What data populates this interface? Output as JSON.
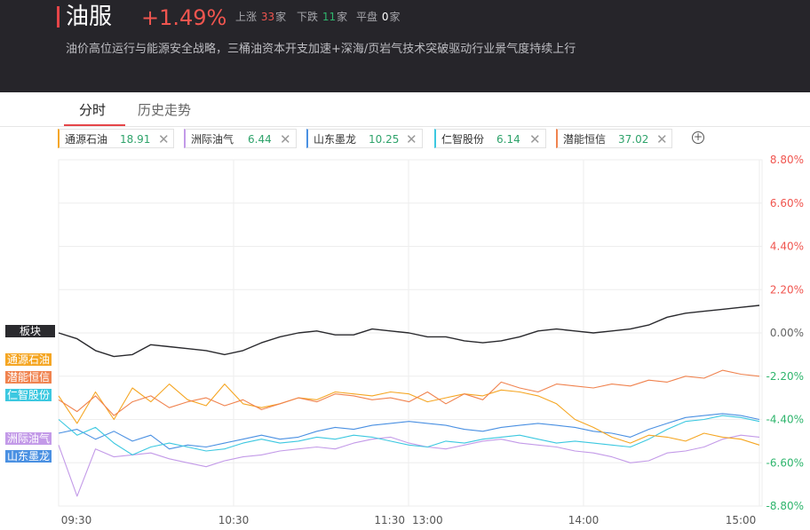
{
  "header": {
    "title": "油服",
    "change": "+1.49%",
    "up_label": "上涨",
    "up_count": "33",
    "up_unit": "家",
    "down_label": "下跌",
    "down_count": "11",
    "down_unit": "家",
    "flat_label": "平盘",
    "flat_count": "0",
    "flat_unit": "家",
    "description": "油价高位运行与能源安全战略，三桶油资本开支加速+深海/页岩气技术突破驱动行业景气度持续上行"
  },
  "tabs": [
    {
      "label": "分时"
    },
    {
      "label": "历史走势"
    }
  ],
  "chips": [
    {
      "name": "通源石油",
      "value": "18.91",
      "color": "#f5a623"
    },
    {
      "name": "洲际油气",
      "value": "6.44",
      "color": "#c39ae8"
    },
    {
      "name": "山东墨龙",
      "value": "10.25",
      "color": "#4a90e2"
    },
    {
      "name": "仁智股份",
      "value": "6.14",
      "color": "#3cc8e0"
    },
    {
      "name": "潜能恒信",
      "value": "37.02",
      "color": "#f0834f"
    }
  ],
  "colors": {
    "up": "#f0554f",
    "down": "#2fb56d",
    "board": "#2a2a2e",
    "grid": "#eeeeee"
  },
  "icons": {
    "close": "close-icon",
    "add": "plus-circle-icon"
  },
  "chart_data": {
    "type": "line",
    "x_ticks": [
      "09:30",
      "10:30",
      "11:30",
      "13:00",
      "14:00",
      "15:00"
    ],
    "ylim": [
      -8.8,
      8.8
    ],
    "y_ticks": [
      "8.80%",
      "6.60%",
      "4.40%",
      "2.20%",
      "0.00%",
      "-2.20%",
      "-4.40%",
      "-6.60%",
      "-8.80%"
    ],
    "grid": true,
    "series": [
      {
        "name": "板块",
        "color": "#2a2a2e",
        "values": [
          0.0,
          -0.3,
          -0.9,
          -1.2,
          -1.1,
          -0.6,
          -0.7,
          -0.8,
          -0.9,
          -1.1,
          -0.9,
          -0.5,
          -0.2,
          0.0,
          0.1,
          -0.1,
          -0.1,
          0.2,
          0.1,
          0.0,
          -0.2,
          -0.2,
          -0.4,
          -0.5,
          -0.4,
          -0.2,
          0.1,
          0.2,
          0.1,
          0.0,
          0.1,
          0.2,
          0.4,
          0.8,
          1.0,
          1.1,
          1.2,
          1.3,
          1.4
        ]
      },
      {
        "name": "通源石油",
        "color": "#f5a623",
        "values": [
          -3.2,
          -4.6,
          -3.0,
          -4.4,
          -2.8,
          -3.5,
          -2.6,
          -3.4,
          -3.7,
          -2.6,
          -3.6,
          -3.8,
          -3.6,
          -3.3,
          -3.4,
          -3.0,
          -3.1,
          -3.2,
          -3.0,
          -3.1,
          -3.5,
          -3.3,
          -3.1,
          -3.2,
          -2.9,
          -3.0,
          -3.2,
          -3.6,
          -4.4,
          -4.8,
          -5.3,
          -5.6,
          -5.2,
          -5.3,
          -5.5,
          -5.1,
          -5.3,
          -5.4,
          -5.7
        ]
      },
      {
        "name": "潜能恒信",
        "color": "#f0834f",
        "values": [
          -3.4,
          -4.0,
          -3.2,
          -4.2,
          -3.5,
          -3.2,
          -3.8,
          -3.5,
          -3.3,
          -3.7,
          -3.4,
          -3.9,
          -3.6,
          -3.3,
          -3.5,
          -3.1,
          -3.2,
          -3.4,
          -3.3,
          -3.5,
          -3.0,
          -3.6,
          -3.1,
          -3.4,
          -2.5,
          -2.8,
          -3.0,
          -2.6,
          -2.7,
          -2.8,
          -2.6,
          -2.7,
          -2.4,
          -2.5,
          -2.2,
          -2.3,
          -1.9,
          -2.1,
          -2.2
        ]
      },
      {
        "name": "仁智股份",
        "color": "#3cc8e0",
        "values": [
          -4.4,
          -5.2,
          -4.8,
          -5.6,
          -6.2,
          -5.8,
          -5.6,
          -5.8,
          -6.0,
          -5.9,
          -5.6,
          -5.4,
          -5.6,
          -5.5,
          -5.3,
          -5.4,
          -5.2,
          -5.3,
          -5.5,
          -5.7,
          -5.8,
          -5.5,
          -5.6,
          -5.4,
          -5.3,
          -5.2,
          -5.4,
          -5.6,
          -5.5,
          -5.6,
          -5.7,
          -5.8,
          -5.4,
          -4.9,
          -4.5,
          -4.4,
          -4.2,
          -4.3,
          -4.5
        ]
      },
      {
        "name": "洲际油气",
        "color": "#c39ae8",
        "values": [
          -5.7,
          -8.3,
          -5.9,
          -6.3,
          -6.2,
          -6.1,
          -6.4,
          -6.6,
          -6.8,
          -6.5,
          -6.3,
          -6.2,
          -6.0,
          -5.9,
          -5.8,
          -5.9,
          -5.6,
          -5.4,
          -5.3,
          -5.6,
          -5.8,
          -5.9,
          -5.7,
          -5.5,
          -5.4,
          -5.6,
          -5.7,
          -5.8,
          -6.0,
          -6.1,
          -6.3,
          -6.6,
          -6.5,
          -6.1,
          -6.0,
          -5.8,
          -5.4,
          -5.2,
          -5.3
        ]
      },
      {
        "name": "山东墨龙",
        "color": "#4a90e2",
        "values": [
          -5.1,
          -4.9,
          -5.4,
          -5.0,
          -5.5,
          -5.2,
          -5.9,
          -5.7,
          -5.8,
          -5.6,
          -5.4,
          -5.2,
          -5.4,
          -5.3,
          -5.0,
          -4.8,
          -4.9,
          -4.7,
          -4.6,
          -4.5,
          -4.6,
          -4.7,
          -4.9,
          -5.0,
          -4.8,
          -4.7,
          -4.6,
          -4.7,
          -4.8,
          -5.0,
          -5.1,
          -5.3,
          -4.9,
          -4.6,
          -4.3,
          -4.2,
          -4.1,
          -4.2,
          -4.4
        ]
      }
    ],
    "end_labels": [
      "板块",
      "通源石油",
      "潜能恒信",
      "仁智股份",
      "洲际油气",
      "山东墨龙"
    ]
  }
}
